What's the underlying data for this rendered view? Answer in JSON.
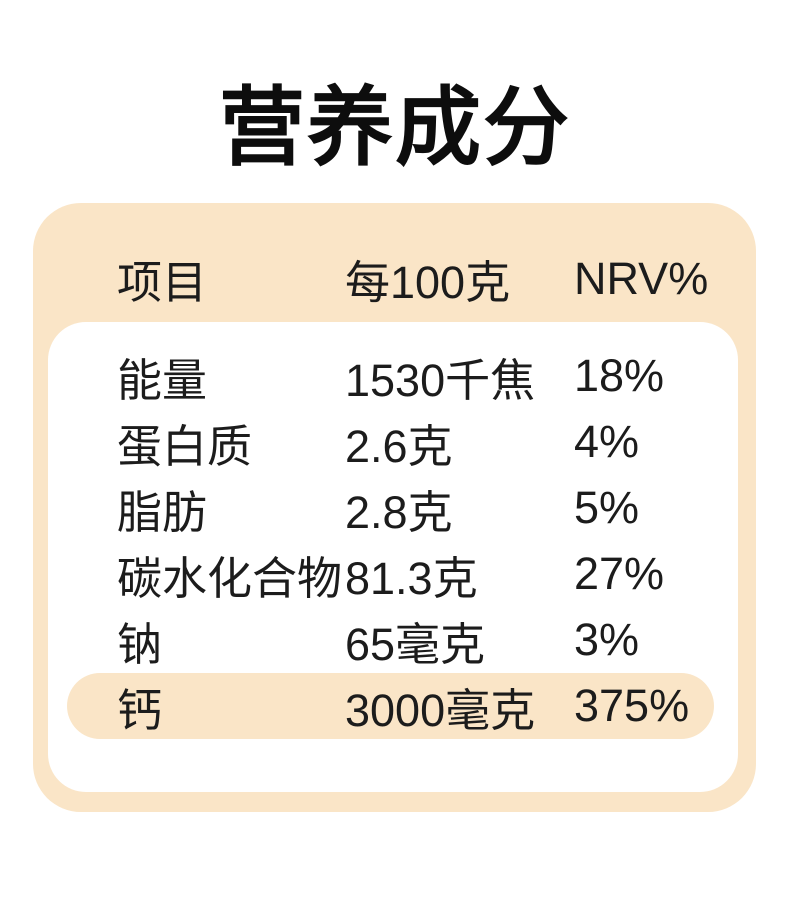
{
  "title": "营养成分",
  "table": {
    "header": {
      "item": "项目",
      "per100g": "每100克",
      "nrv": "NRV%"
    },
    "rows": [
      {
        "item": "能量",
        "value": "1530千焦",
        "nrv": "18%"
      },
      {
        "item": "蛋白质",
        "value": "2.6克",
        "nrv": "4%"
      },
      {
        "item": "脂肪",
        "value": "2.8克",
        "nrv": "5%"
      },
      {
        "item": "碳水化合物",
        "value": "81.3克",
        "nrv": "27%"
      },
      {
        "item": "钠",
        "value": "65毫克",
        "nrv": "3%"
      },
      {
        "item": "钙",
        "value": "3000毫克",
        "nrv": "375%"
      }
    ],
    "highlighted_row": "钙"
  },
  "colors": {
    "card_background": "#fae5c7",
    "panel_background": "#ffffff",
    "highlight_pill": "#fae5c7",
    "text": "#1c1c1c",
    "title": "#0d0d0d"
  }
}
